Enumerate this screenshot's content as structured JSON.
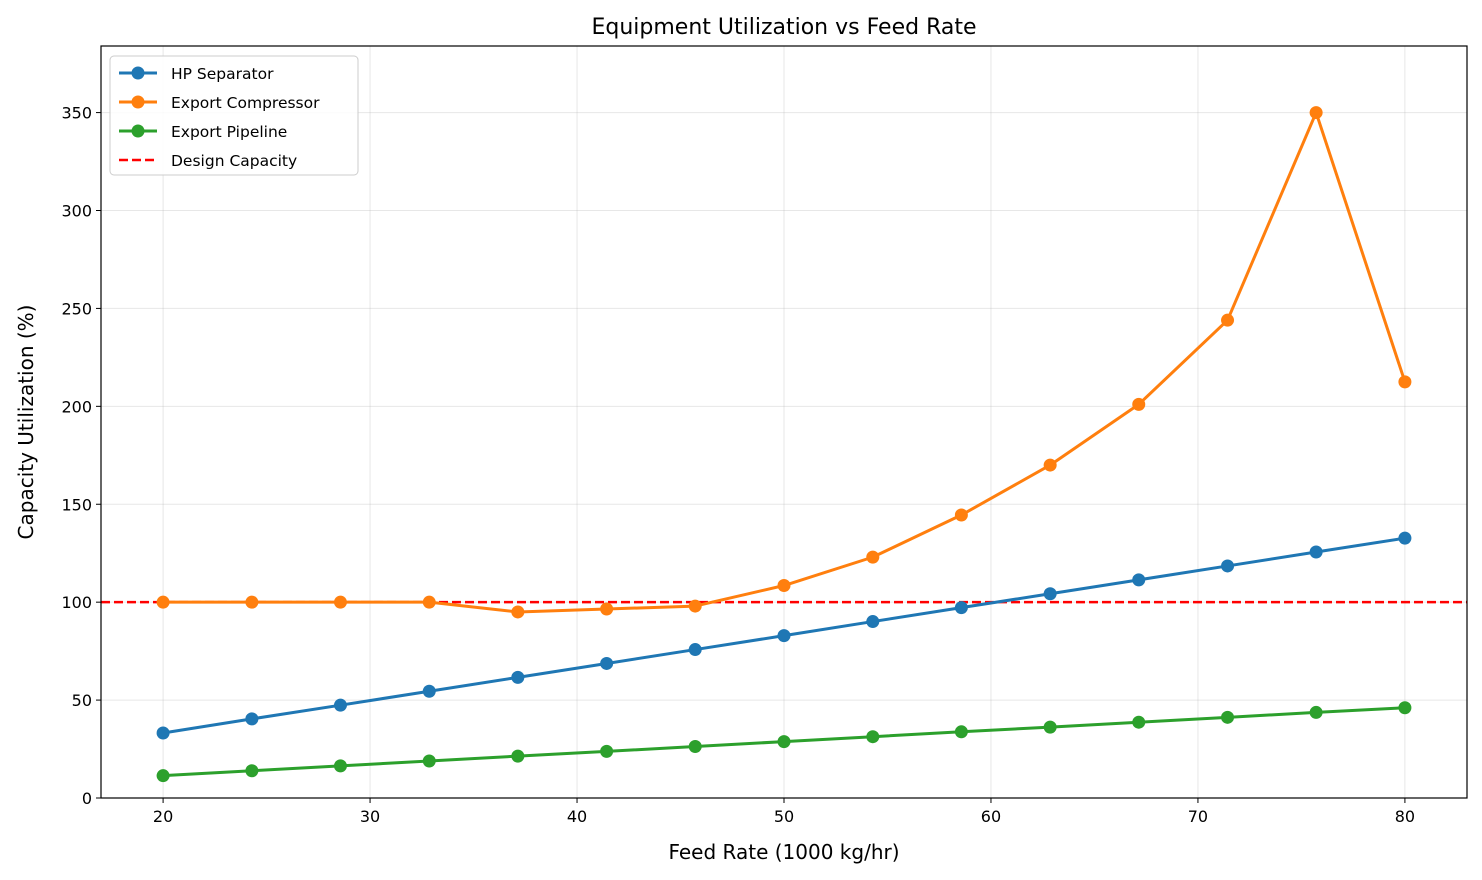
{
  "chart_data": {
    "type": "line",
    "title": "Equipment Utilization vs Feed Rate",
    "xlabel": "Feed Rate (1000 kg/hr)",
    "ylabel": "Capacity Utilization (%)",
    "xlim": [
      17,
      83
    ],
    "ylim": [
      0,
      384
    ],
    "xticks": [
      20,
      30,
      40,
      50,
      60,
      70,
      80
    ],
    "yticks": [
      0,
      50,
      100,
      150,
      200,
      250,
      300,
      350
    ],
    "grid": true,
    "legend_position": "upper left",
    "x": [
      20,
      24.29,
      28.57,
      32.86,
      37.14,
      41.43,
      45.71,
      50,
      54.29,
      58.57,
      62.86,
      67.14,
      71.43,
      75.71,
      80
    ],
    "series": [
      {
        "name": "HP Separator",
        "color": "#1f77b4",
        "values": [
          33.2,
          40.4,
          47.4,
          54.5,
          61.6,
          68.7,
          75.8,
          82.9,
          90.1,
          97.2,
          104.3,
          111.4,
          118.5,
          125.6,
          132.7
        ]
      },
      {
        "name": "Export Compressor",
        "color": "#ff7f0e",
        "values": [
          100,
          100,
          100,
          100,
          95,
          96.5,
          98,
          108.5,
          123,
          144.5,
          170,
          201,
          244,
          350,
          212.5
        ]
      },
      {
        "name": "Export Pipeline",
        "color": "#2ca02c",
        "values": [
          11.4,
          13.9,
          16.4,
          18.9,
          21.4,
          23.8,
          26.3,
          28.8,
          31.3,
          33.8,
          36.2,
          38.7,
          41.2,
          43.7,
          46.1
        ]
      }
    ],
    "reference_lines": [
      {
        "name": "Design Capacity",
        "y": 100,
        "color": "#ff0000",
        "style": "dashed"
      }
    ]
  }
}
